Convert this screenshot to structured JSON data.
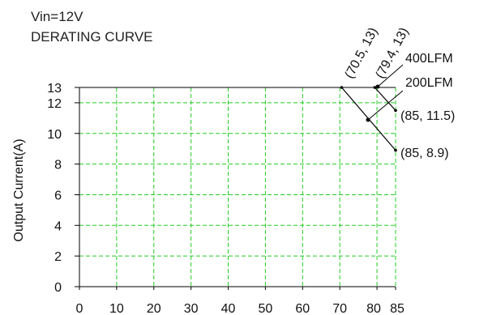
{
  "chart_data": {
    "type": "line",
    "title": "Vin=12V",
    "subtitle": "DERATING CURVE",
    "xlabel": "",
    "ylabel": "Output Current(A)",
    "xlim": [
      0,
      85
    ],
    "ylim": [
      0,
      13
    ],
    "x_ticks": [
      0,
      10,
      20,
      30,
      40,
      50,
      60,
      70,
      80,
      85
    ],
    "y_ticks": [
      0,
      2,
      4,
      6,
      8,
      10,
      12,
      13
    ],
    "grid": true,
    "series": [
      {
        "name": "400LFM",
        "x": [
          79.4,
          85
        ],
        "y": [
          13,
          11.5
        ],
        "color": "#000000"
      },
      {
        "name": "200LFM",
        "x": [
          70.5,
          85
        ],
        "y": [
          13,
          8.9
        ],
        "color": "#000000"
      }
    ],
    "annotations": [
      {
        "text": "(70.5,   13)",
        "x": 70.5,
        "y": 13,
        "rotated": true
      },
      {
        "text": "(79.4,   13)",
        "x": 79.4,
        "y": 13,
        "rotated": true
      },
      {
        "text": "(85,   11.5)",
        "x": 85,
        "y": 11.5
      },
      {
        "text": "(85,   8.9)",
        "x": 85,
        "y": 8.9
      }
    ],
    "grid_color": "#22cc22",
    "axis_color": "#000000"
  }
}
